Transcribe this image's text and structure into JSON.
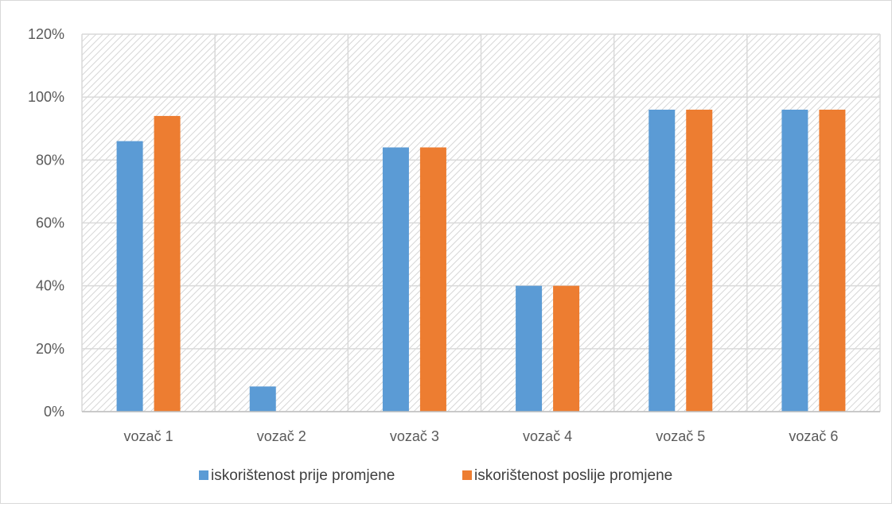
{
  "chart_data": {
    "type": "bar",
    "categories": [
      "vozač 1",
      "vozač 2",
      "vozač 3",
      "vozač 4",
      "vozač 5",
      "vozač 6"
    ],
    "series": [
      {
        "name": "iskorištenost prije promjene",
        "values": [
          86,
          8,
          84,
          40,
          96,
          96
        ],
        "color": "#5b9bd5"
      },
      {
        "name": "iskorištenost poslije promjene",
        "values": [
          94,
          0,
          84,
          40,
          96,
          96
        ],
        "color": "#ed7d31"
      }
    ],
    "ylim": [
      0,
      120
    ],
    "yticks": [
      "0%",
      "20%",
      "40%",
      "60%",
      "80%",
      "100%",
      "120%"
    ],
    "title": "",
    "xlabel": "",
    "ylabel": "",
    "grid": true,
    "legend_position": "bottom"
  }
}
